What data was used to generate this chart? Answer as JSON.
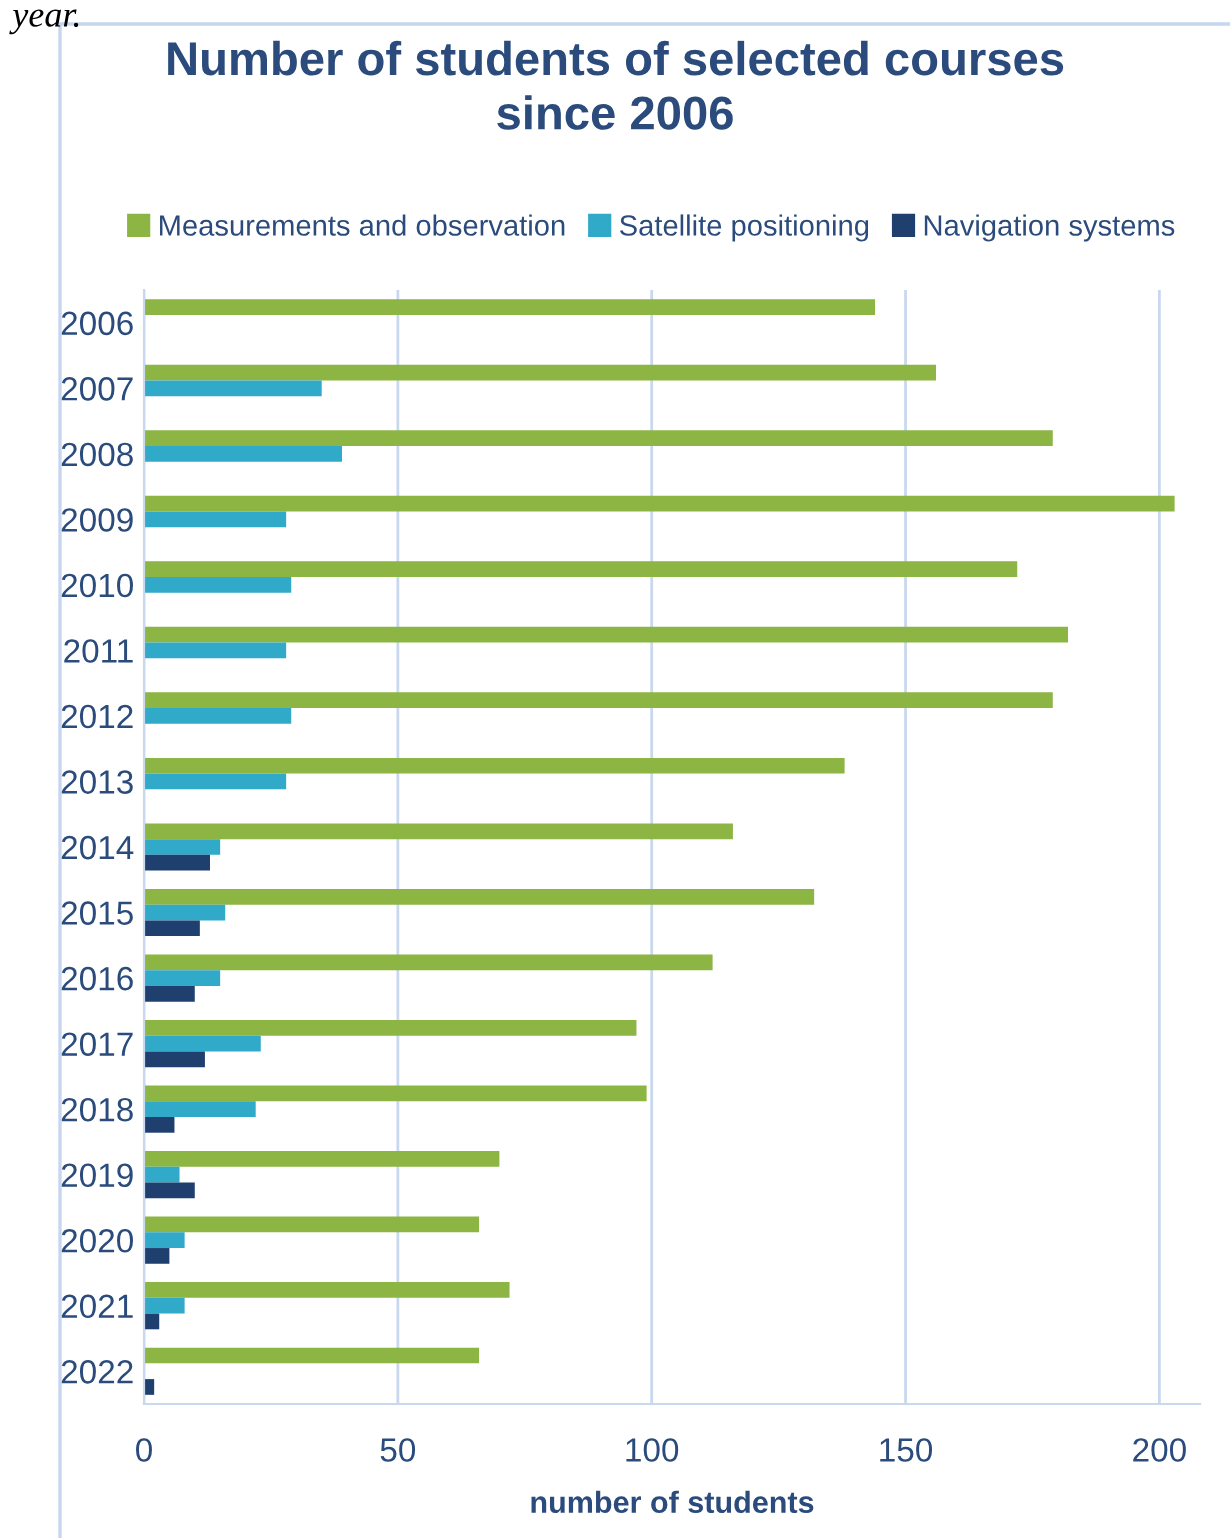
{
  "chart_data": {
    "type": "bar",
    "orientation": "horizontal",
    "title": "Number of students of selected courses\nsince 2006",
    "xlabel": "number of students",
    "annotations": [
      "year."
    ],
    "categories": [
      "2006",
      "2007",
      "2008",
      "2009",
      "2010",
      "2011",
      "2012",
      "2013",
      "2014",
      "2015",
      "2016",
      "2017",
      "2018",
      "2019",
      "2020",
      "2021",
      "2022"
    ],
    "series": [
      {
        "name": "Measurements and observation",
        "color": "#8db543",
        "values": [
          144,
          156,
          179,
          203,
          172,
          182,
          179,
          138,
          116,
          132,
          112,
          97,
          99,
          70,
          66,
          72,
          66
        ]
      },
      {
        "name": "Satellite positioning",
        "color": "#31a9c9",
        "values": [
          null,
          35,
          39,
          28,
          29,
          28,
          29,
          28,
          15,
          16,
          15,
          23,
          22,
          7,
          8,
          8,
          null
        ]
      },
      {
        "name": "Navigation systems",
        "color": "#1f3f6e",
        "values": [
          null,
          null,
          null,
          null,
          null,
          null,
          null,
          null,
          13,
          11,
          10,
          12,
          6,
          10,
          5,
          3,
          2
        ]
      }
    ],
    "xlim": [
      0,
      208
    ],
    "xticks": [
      0,
      50,
      100,
      150,
      200
    ],
    "grid": "x",
    "legend": "top"
  }
}
